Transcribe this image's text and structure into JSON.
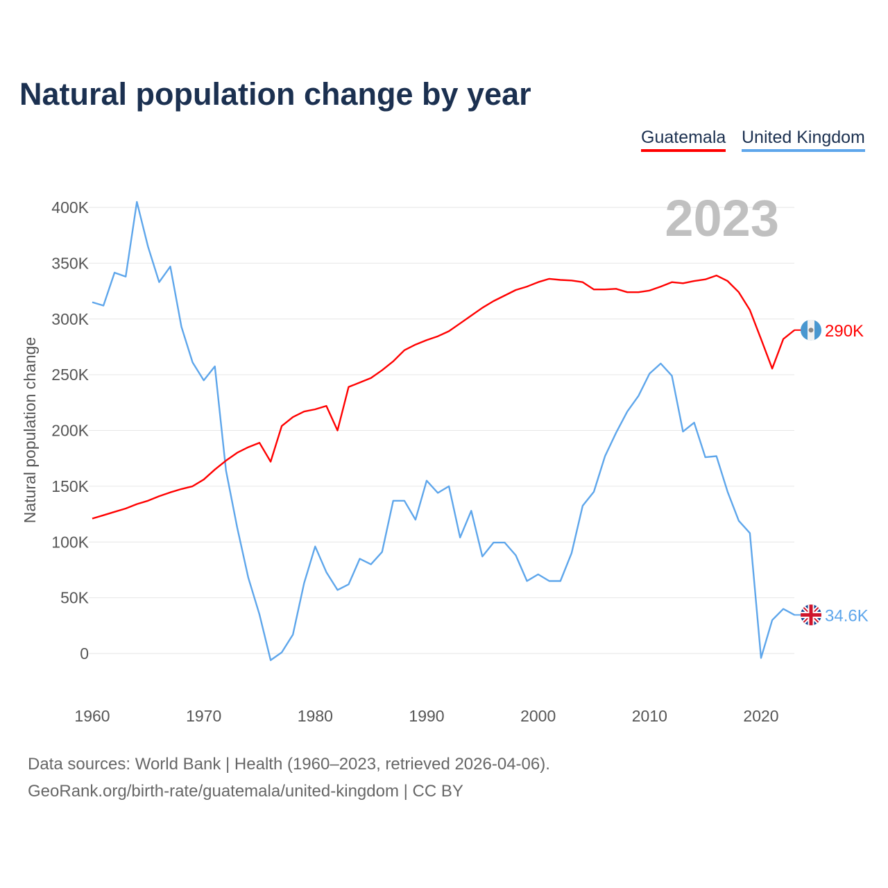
{
  "title": "Natural population change by year",
  "legend": [
    {
      "name": "Guatemala",
      "color": "#ff0000"
    },
    {
      "name": "United Kingdom",
      "color": "#5ea6eb"
    }
  ],
  "footer": {
    "line1": "Data sources: World Bank | Health (1960–2023, retrieved 2026-04-06).",
    "line2": "GeoRank.org/birth-rate/guatemala/united-kingdom | CC BY"
  },
  "chart_data": {
    "type": "line",
    "title": "Natural population change by year",
    "year_label": "2023",
    "xlabel": "",
    "ylabel": "Natural population change",
    "xlim": [
      1960,
      2023
    ],
    "ylim": [
      -25000,
      400000
    ],
    "x_ticks": [
      1960,
      1970,
      1980,
      1990,
      2000,
      2010,
      2020
    ],
    "y_ticks": [
      0,
      50000,
      100000,
      150000,
      200000,
      250000,
      300000,
      350000,
      400000
    ],
    "y_tick_labels": [
      "0",
      "50K",
      "100K",
      "150K",
      "200K",
      "250K",
      "300K",
      "350K",
      "400K"
    ],
    "grid": true,
    "legend_position": "top-right",
    "x": [
      1960,
      1961,
      1962,
      1963,
      1964,
      1965,
      1966,
      1967,
      1968,
      1969,
      1970,
      1971,
      1972,
      1973,
      1974,
      1975,
      1976,
      1977,
      1978,
      1979,
      1980,
      1981,
      1982,
      1983,
      1984,
      1985,
      1986,
      1987,
      1988,
      1989,
      1990,
      1991,
      1992,
      1993,
      1994,
      1995,
      1996,
      1997,
      1998,
      1999,
      2000,
      2001,
      2002,
      2003,
      2004,
      2005,
      2006,
      2007,
      2008,
      2009,
      2010,
      2011,
      2012,
      2013,
      2014,
      2015,
      2016,
      2017,
      2018,
      2019,
      2020,
      2021,
      2022,
      2023
    ],
    "series": [
      {
        "name": "Guatemala",
        "color": "#ff0000",
        "end_label": "290K",
        "values": [
          121,
          124,
          127,
          130,
          134,
          137,
          141,
          144.5,
          147.5,
          150,
          156,
          165,
          173,
          180,
          185,
          189,
          172,
          204,
          212,
          217,
          219,
          222,
          200,
          239,
          243,
          247,
          254,
          262,
          272,
          277,
          281,
          284.5,
          289,
          296,
          303,
          310,
          316,
          321,
          326,
          329,
          333,
          336,
          335,
          334.5,
          333,
          326.5,
          326.5,
          327,
          324,
          324,
          325.5,
          329,
          333,
          332,
          334,
          335.5,
          339,
          334,
          324,
          308,
          282,
          255.5,
          282,
          290
        ],
        "unit": "thousands"
      },
      {
        "name": "United Kingdom",
        "color": "#5ea6eb",
        "end_label": "34.6K",
        "values": [
          315,
          312,
          341.5,
          338,
          405,
          365,
          333,
          347,
          293,
          261,
          245,
          257.5,
          164,
          113,
          68,
          35,
          -6,
          1,
          17,
          63,
          96,
          73,
          57,
          62,
          85,
          80,
          91,
          137,
          137,
          120,
          155,
          144,
          150,
          104,
          128,
          87,
          99.5,
          99.5,
          88,
          65,
          71,
          65,
          65,
          90,
          132.5,
          145,
          177,
          198,
          217,
          231,
          251,
          260,
          249,
          199,
          207,
          176,
          177,
          145,
          119,
          108,
          -4,
          30,
          40,
          34.6
        ],
        "unit": "thousands"
      }
    ]
  }
}
